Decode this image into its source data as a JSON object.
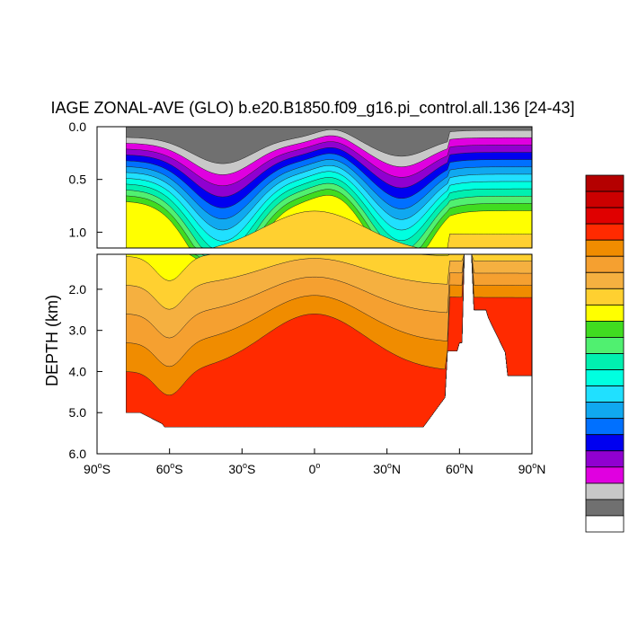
{
  "chart_data": {
    "type": "heatmap",
    "title": "IAGE ZONAL-AVE (GLO) b.e20.B1850.f09_g16.pi_control.all.136 [24-43]",
    "ylabel": "DEPTH (km)",
    "x_ticks": [
      {
        "value": -90,
        "deg": "90",
        "hemi": "S"
      },
      {
        "value": -60,
        "deg": "60",
        "hemi": "S"
      },
      {
        "value": -30,
        "deg": "30",
        "hemi": "S"
      },
      {
        "value": 0,
        "deg": "0",
        "hemi": ""
      },
      {
        "value": 30,
        "deg": "30",
        "hemi": "N"
      },
      {
        "value": 60,
        "deg": "60",
        "hemi": "N"
      },
      {
        "value": 90,
        "deg": "90",
        "hemi": "N"
      }
    ],
    "upper_panel": {
      "ylim": [
        0.0,
        1.15
      ],
      "yticks": [
        "0.0",
        "0.5",
        "1.0"
      ],
      "ytick_values": [
        0.0,
        0.5,
        1.0
      ]
    },
    "lower_panel": {
      "ylim": [
        1.15,
        6.0
      ],
      "yticks": [
        "2.0",
        "3.0",
        "4.0",
        "5.0",
        "6.0"
      ],
      "ytick_values": [
        2.0,
        3.0,
        4.0,
        5.0,
        6.0
      ]
    },
    "xlim": [
      -90,
      90
    ],
    "colorbar": {
      "orientation": "vertical",
      "labels_shown": false,
      "colors_top_to_bottom": [
        "#b40000",
        "#cc0000",
        "#e00000",
        "#ff2a00",
        "#f08c00",
        "#f5a030",
        "#f5b040",
        "#ffd030",
        "#ffff00",
        "#40dc20",
        "#50f070",
        "#00f0b0",
        "#00ffe0",
        "#20e0ff",
        "#10a8f0",
        "#0070ff",
        "#0000f0",
        "#9000d0",
        "#e000e0",
        "#c8c8c8",
        "#707070",
        "#ffffff"
      ]
    },
    "levels_surface_to_deep": [
      "#707070",
      "#c8c8c8",
      "#e000e0",
      "#9000d0",
      "#0000f0",
      "#0070ff",
      "#10a8f0",
      "#20e0ff",
      "#00ffe0",
      "#00f0b0",
      "#50f070",
      "#40dc20",
      "#ffff00",
      "#ffd030",
      "#f5b040",
      "#f5a030",
      "#f08c00",
      "#ff2a00"
    ],
    "background_color": "#ffffff"
  }
}
